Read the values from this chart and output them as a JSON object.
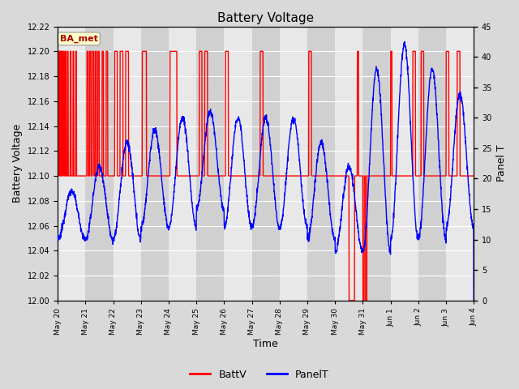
{
  "title": "Battery Voltage",
  "xlabel": "Time",
  "ylabel_left": "Battery Voltage",
  "ylabel_right": "Panel T",
  "annotation_text": "BA_met",
  "annotation_bg": "#ffffcc",
  "annotation_border": "#aaaaaa",
  "ylim_left": [
    12.0,
    12.22
  ],
  "ylim_right": [
    0,
    45
  ],
  "yticks_left": [
    12.0,
    12.02,
    12.04,
    12.06,
    12.08,
    12.1,
    12.12,
    12.14,
    12.16,
    12.18,
    12.2,
    12.22
  ],
  "yticks_right": [
    0,
    5,
    10,
    15,
    20,
    25,
    30,
    35,
    40,
    45
  ],
  "bg_color": "#d9d9d9",
  "plot_bg_light": "#e8e8e8",
  "plot_bg_dark": "#d0d0d0",
  "grid_color": "#ffffff",
  "batt_color": "#ff0000",
  "panel_color": "#0000ff",
  "legend_batt": "BattV",
  "legend_panel": "PanelT",
  "tick_labels": [
    "May 20",
    "May 21",
    "May 22",
    "May 23",
    "May 24",
    "May 25",
    "May 26",
    "May 27",
    "May 28",
    "May 29",
    "May 30",
    "May 31",
    "Jun 1",
    "Jun 2",
    "Jun 3",
    "Jun 4"
  ]
}
